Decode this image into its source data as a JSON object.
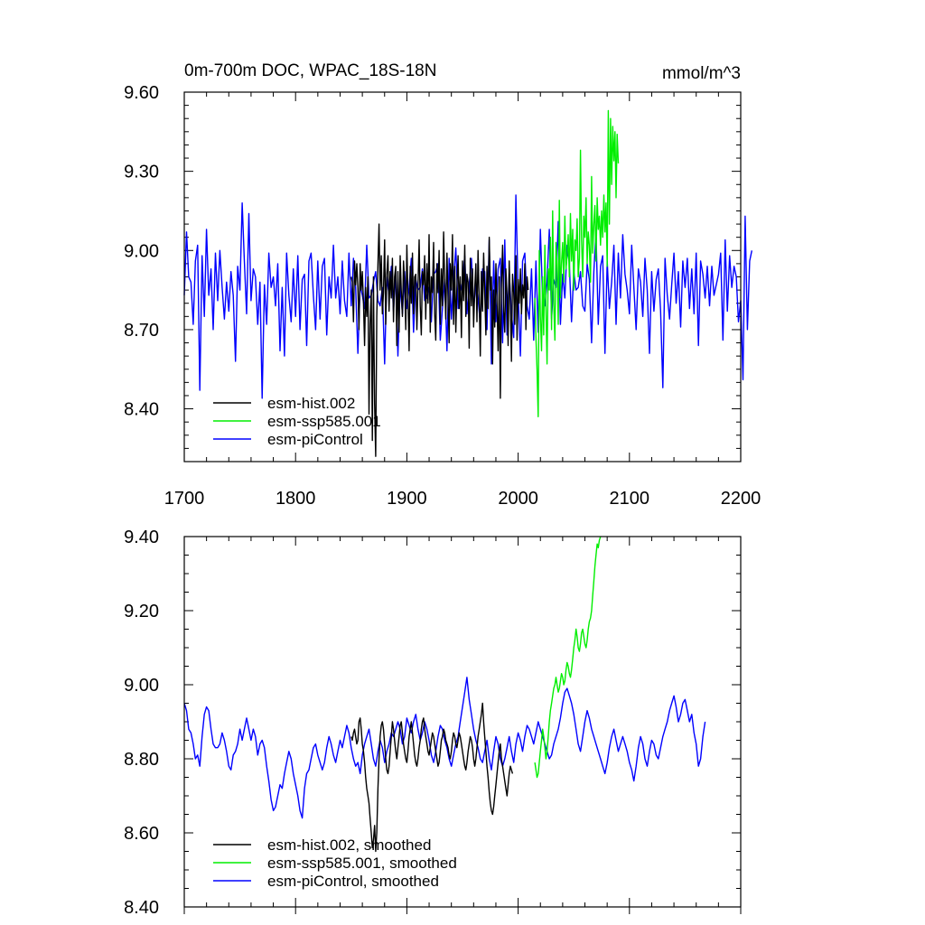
{
  "figure": {
    "title": "0m-700m DOC, WPAC_18S-18N",
    "units": "mmol/m^3"
  },
  "chart_data": [
    {
      "type": "line",
      "title": "0m-700m DOC, WPAC_18S-18N",
      "units_label": "mmol/m^3",
      "xlim": [
        1700,
        2200
      ],
      "ylim": [
        8.2,
        9.6
      ],
      "x_ticks": [
        "1700",
        "1800",
        "1900",
        "2000",
        "2100",
        "2200"
      ],
      "y_ticks": [
        "8.40",
        "8.70",
        "9.00",
        "9.30",
        "9.60"
      ],
      "legend_position": "bottom-left",
      "series": [
        {
          "name": "esm-piControl",
          "color": "#0000ff",
          "x_start": 1700,
          "x_step": 2,
          "values": [
            8.83,
            9.07,
            8.9,
            8.88,
            8.72,
            8.96,
            9.02,
            8.47,
            8.98,
            8.75,
            9.08,
            8.83,
            8.93,
            8.7,
            8.99,
            8.81,
            9.0,
            8.86,
            8.74,
            8.88,
            8.77,
            8.92,
            8.83,
            8.58,
            8.94,
            8.85,
            9.18,
            8.96,
            8.76,
            9.14,
            8.81,
            8.93,
            8.9,
            8.72,
            8.88,
            8.44,
            8.87,
            8.72,
            8.99,
            8.86,
            8.9,
            8.79,
            8.95,
            8.62,
            8.86,
            8.6,
            8.99,
            8.83,
            8.73,
            8.93,
            8.75,
            8.98,
            8.7,
            8.89,
            8.91,
            8.64,
            8.96,
            8.99,
            8.83,
            8.7,
            8.96,
            8.74,
            8.94,
            8.97,
            8.68,
            8.9,
            8.82,
            9.02,
            8.82,
            8.9,
            8.76,
            8.96,
            8.81,
            8.75,
            8.99,
            8.79,
            8.97,
            8.86,
            8.61,
            8.87,
            8.83,
            8.78,
            9.02,
            8.82,
            8.83,
            8.88,
            8.92,
            8.81,
            8.79,
            8.86,
            8.57,
            8.9,
            8.83,
            8.94,
            8.77,
            8.92,
            8.6,
            8.87,
            8.76,
            8.92,
            8.78,
            8.86,
            8.97,
            8.69,
            8.89,
            8.85,
            8.86,
            8.93,
            8.81,
            8.82,
            8.86,
            8.73,
            8.91,
            8.92,
            8.95,
            8.66,
            8.78,
            8.89,
            8.62,
            8.97,
            8.74,
            8.89,
            9.01,
            8.78,
            8.84,
            8.88,
            8.98,
            8.76,
            8.87,
            8.97,
            8.78,
            8.87,
            8.82,
            8.72,
            8.93,
            8.92,
            8.7,
            9.04,
            8.57,
            8.96,
            8.73,
            8.93,
            8.97,
            8.65,
            9.04,
            8.68,
            8.92,
            8.76,
            8.67,
            9.21,
            8.84,
            8.6,
            8.96,
            8.99,
            8.79,
            8.74,
            8.93,
            8.66,
            8.96,
            8.69,
            9.08,
            8.82,
            8.79,
            8.88,
            9.08,
            8.74,
            8.89,
            8.86,
            9.11,
            8.72,
            8.91,
            8.82,
            9.02,
            8.95,
            8.73,
            8.92,
            8.85,
            8.86,
            8.92,
            8.79,
            8.77,
            8.95,
            8.89,
            8.65,
            8.92,
            9.07,
            8.72,
            8.94,
            8.98,
            8.61,
            8.96,
            8.78,
            8.88,
            9.02,
            8.72,
            8.99,
            8.82,
            9.06,
            8.91,
            8.85,
            8.76,
            9.02,
            8.86,
            8.7,
            8.93,
            8.88,
            8.75,
            8.97,
            8.85,
            8.61,
            8.92,
            8.77,
            8.89,
            8.93,
            8.77,
            8.48,
            8.97,
            8.83,
            8.74,
            8.87,
            8.99,
            8.8,
            8.92,
            8.71,
            8.96,
            8.86,
            8.97,
            8.78,
            8.93,
            8.76,
            8.99,
            8.64,
            8.96,
            8.91,
            8.82,
            8.94,
            8.79,
            8.94,
            8.83,
            8.87,
            8.91,
            8.99,
            8.66,
            9.04,
            8.77,
            8.98,
            8.86,
            8.94,
            8.9,
            8.73,
            8.81,
            8.51,
            9.13,
            8.7,
            8.96,
            9.0
          ]
        },
        {
          "name": "esm-hist.002",
          "color": "#000000",
          "x_start": 1850,
          "x_step": 1,
          "values": [
            8.9,
            8.88,
            8.73,
            8.96,
            8.87,
            8.95,
            8.86,
            8.7,
            8.95,
            8.85,
            8.92,
            8.8,
            8.64,
            8.86,
            8.75,
            8.9,
            8.38,
            8.72,
            8.85,
            8.28,
            8.9,
            8.42,
            8.22,
            8.75,
            8.95,
            9.1,
            8.85,
            8.98,
            8.76,
            8.84,
            9.04,
            8.72,
            8.91,
            8.98,
            8.77,
            8.92,
            8.82,
            8.97,
            8.73,
            8.9,
            8.94,
            8.64,
            8.92,
            8.69,
            8.98,
            8.85,
            8.75,
            8.96,
            8.88,
            8.7,
            9.02,
            8.83,
            8.62,
            8.94,
            8.8,
            8.99,
            8.76,
            8.9,
            8.91,
            8.7,
            8.86,
            9.04,
            8.79,
            8.68,
            8.92,
            8.87,
            8.98,
            8.74,
            8.95,
            8.8,
            9.06,
            8.69,
            8.9,
            8.84,
            9.03,
            8.76,
            8.66,
            8.95,
            8.84,
            9.0,
            8.72,
            8.93,
            8.79,
            9.07,
            8.88,
            8.74,
            8.99,
            8.82,
            8.65,
            8.95,
            8.85,
            9.06,
            8.72,
            8.94,
            8.69,
            8.86,
            8.98,
            8.78,
            8.9,
            8.67,
            8.96,
            8.81,
            9.02,
            8.75,
            8.91,
            8.88,
            8.63,
            8.97,
            8.79,
            8.93,
            8.71,
            8.86,
            8.95,
            8.73,
            9.0,
            8.82,
            8.6,
            8.92,
            8.77,
            8.99,
            8.84,
            8.68,
            8.94,
            8.78,
            9.05,
            8.85,
            8.9,
            8.57,
            8.85,
            8.71,
            8.95,
            8.8,
            8.62,
            8.9,
            8.44,
            8.87,
            9.02,
            8.77,
            8.69,
            8.93,
            8.83,
            8.64,
            8.96,
            8.79,
            8.58,
            8.91,
            8.84,
            8.72,
            8.98,
            8.66,
            8.89,
            8.8,
            8.93,
            8.76,
            8.87,
            8.82,
            8.95,
            8.7,
            8.9,
            8.85
          ]
        },
        {
          "name": "esm-ssp585.001",
          "color": "#00ee00",
          "x_start": 2015,
          "x_step": 1,
          "values": [
            8.82,
            8.67,
            8.55,
            8.37,
            9.0,
            8.75,
            8.62,
            8.9,
            8.68,
            9.02,
            8.78,
            8.57,
            8.93,
            8.85,
            9.05,
            8.7,
            9.15,
            8.8,
            8.66,
            9.03,
            8.95,
            8.72,
            9.19,
            8.82,
            8.95,
            9.03,
            8.88,
            9.13,
            8.93,
            8.98,
            9.06,
            8.9,
            9.14,
            8.96,
            9.08,
            8.85,
            9.04,
            9.0,
            9.12,
            8.9,
            8.97,
            9.38,
            9.04,
            8.9,
            9.13,
            9.05,
            9.2,
            8.95,
            9.07,
            9.02,
            8.88,
            9.28,
            8.99,
            9.1,
            9.17,
            8.96,
            9.2,
            9.08,
            9.13,
            9.02,
            9.15,
            9.05,
            9.21,
            9.07,
            9.18,
            8.94,
            9.53,
            9.1,
            9.5,
            9.25,
            9.47,
            9.34,
            9.45,
            9.2,
            9.44,
            9.33
          ]
        }
      ]
    },
    {
      "type": "line",
      "xlim": [
        1700,
        2200
      ],
      "ylim": [
        8.4,
        9.4
      ],
      "y_ticks": [
        "8.40",
        "8.60",
        "8.80",
        "9.00",
        "9.20",
        "9.40"
      ],
      "legend_position": "bottom-left",
      "series": [
        {
          "name": "esm-piControl, smoothed",
          "color": "#0000ff",
          "x_start": 1700,
          "x_step": 2,
          "values": [
            8.95,
            8.93,
            8.88,
            8.87,
            8.84,
            8.8,
            8.81,
            8.78,
            8.86,
            8.92,
            8.94,
            8.93,
            8.88,
            8.84,
            8.83,
            8.83,
            8.84,
            8.87,
            8.85,
            8.82,
            8.78,
            8.77,
            8.81,
            8.82,
            8.84,
            8.88,
            8.85,
            8.88,
            8.91,
            8.88,
            8.85,
            8.88,
            8.86,
            8.81,
            8.84,
            8.85,
            8.83,
            8.78,
            8.74,
            8.69,
            8.66,
            8.67,
            8.7,
            8.73,
            8.72,
            8.76,
            8.79,
            8.82,
            8.8,
            8.76,
            8.73,
            8.7,
            8.66,
            8.64,
            8.72,
            8.76,
            8.77,
            8.8,
            8.83,
            8.84,
            8.81,
            8.79,
            8.77,
            8.79,
            8.83,
            8.86,
            8.84,
            8.81,
            8.79,
            8.82,
            8.85,
            8.83,
            8.86,
            8.89,
            8.87,
            8.83,
            8.8,
            8.78,
            8.79,
            8.76,
            8.81,
            8.84,
            8.86,
            8.88,
            8.84,
            8.8,
            8.78,
            8.82,
            8.85,
            8.83,
            8.79,
            8.82,
            8.84,
            8.87,
            8.86,
            8.88,
            8.9,
            8.88,
            8.84,
            8.86,
            8.91,
            8.89,
            8.87,
            8.9,
            8.92,
            8.88,
            8.85,
            8.87,
            8.9,
            8.88,
            8.85,
            8.81,
            8.79,
            8.82,
            8.86,
            8.89,
            8.88,
            8.85,
            8.83,
            8.8,
            8.78,
            8.81,
            8.84,
            8.86,
            8.9,
            8.94,
            8.98,
            9.02,
            8.96,
            8.92,
            8.88,
            8.85,
            8.83,
            8.8,
            8.79,
            8.82,
            8.85,
            8.8,
            8.77,
            8.82,
            8.86,
            8.84,
            8.8,
            8.78,
            8.8,
            8.83,
            8.86,
            8.82,
            8.79,
            8.84,
            8.87,
            8.85,
            8.82,
            8.86,
            8.89,
            8.88,
            8.86,
            8.84,
            8.87,
            8.9,
            8.88,
            8.86,
            8.84,
            8.82,
            8.8,
            8.81,
            8.84,
            8.86,
            8.88,
            8.91,
            8.95,
            8.98,
            8.99,
            8.97,
            8.95,
            8.92,
            8.88,
            8.84,
            8.82,
            8.86,
            8.9,
            8.93,
            8.91,
            8.88,
            8.86,
            8.84,
            8.82,
            8.8,
            8.78,
            8.76,
            8.79,
            8.83,
            8.86,
            8.88,
            8.85,
            8.82,
            8.84,
            8.86,
            8.84,
            8.82,
            8.79,
            8.77,
            8.74,
            8.78,
            8.83,
            8.86,
            8.84,
            8.8,
            8.78,
            8.82,
            8.85,
            8.84,
            8.81,
            8.8,
            8.83,
            8.86,
            8.88,
            8.9,
            8.93,
            8.95,
            8.97,
            8.94,
            8.9,
            8.92,
            8.95,
            8.96,
            8.93,
            8.9,
            8.92,
            8.87,
            8.84,
            8.78,
            8.8,
            8.86,
            8.9
          ]
        },
        {
          "name": "esm-hist.002, smoothed",
          "color": "#000000",
          "x_start": 1850,
          "x_step": 1,
          "values": [
            8.86,
            8.85,
            8.87,
            8.88,
            8.86,
            8.84,
            8.85,
            8.9,
            8.91,
            8.88,
            8.84,
            8.82,
            8.79,
            8.75,
            8.72,
            8.7,
            8.68,
            8.64,
            8.6,
            8.56,
            8.58,
            8.62,
            8.55,
            8.6,
            8.72,
            8.8,
            8.86,
            8.89,
            8.9,
            8.88,
            8.84,
            8.8,
            8.77,
            8.76,
            8.78,
            8.82,
            8.86,
            8.9,
            8.88,
            8.85,
            8.82,
            8.8,
            8.83,
            8.86,
            8.89,
            8.9,
            8.87,
            8.84,
            8.82,
            8.8,
            8.79,
            8.82,
            8.86,
            8.88,
            8.9,
            8.87,
            8.84,
            8.81,
            8.79,
            8.78,
            8.8,
            8.83,
            8.85,
            8.88,
            8.9,
            8.91,
            8.88,
            8.86,
            8.84,
            8.82,
            8.81,
            8.83,
            8.85,
            8.87,
            8.86,
            8.84,
            8.82,
            8.8,
            8.78,
            8.79,
            8.82,
            8.85,
            8.86,
            8.88,
            8.87,
            8.85,
            8.84,
            8.83,
            8.81,
            8.8,
            8.82,
            8.85,
            8.87,
            8.86,
            8.84,
            8.83,
            8.85,
            8.87,
            8.86,
            8.84,
            8.82,
            8.8,
            8.78,
            8.77,
            8.79,
            8.82,
            8.84,
            8.86,
            8.85,
            8.83,
            8.8,
            8.78,
            8.8,
            8.83,
            8.86,
            8.88,
            8.9,
            8.92,
            8.95,
            8.9,
            8.86,
            8.82,
            8.78,
            8.75,
            8.71,
            8.68,
            8.66,
            8.65,
            8.67,
            8.7,
            8.73,
            8.76,
            8.79,
            8.82,
            8.84,
            8.8,
            8.78,
            8.76,
            8.74,
            8.72,
            8.7,
            8.73,
            8.76,
            8.78,
            8.77,
            8.76
          ]
        },
        {
          "name": "esm-ssp585.001, smoothed",
          "color": "#00ee00",
          "x_start": 2015,
          "x_step": 1,
          "values": [
            8.79,
            8.77,
            8.75,
            8.76,
            8.79,
            8.82,
            8.85,
            8.88,
            8.86,
            8.83,
            8.8,
            8.82,
            8.86,
            8.9,
            8.93,
            8.95,
            8.97,
            8.99,
            9.0,
            9.02,
            9.0,
            8.98,
            8.99,
            9.01,
            9.03,
            9.02,
            9.0,
            9.01,
            9.04,
            9.06,
            9.05,
            9.03,
            9.02,
            9.04,
            9.07,
            9.1,
            9.12,
            9.15,
            9.13,
            9.1,
            9.09,
            9.11,
            9.14,
            9.15,
            9.13,
            9.11,
            9.1,
            9.12,
            9.15,
            9.17,
            9.18,
            9.2,
            9.24,
            9.28,
            9.32,
            9.35,
            9.38,
            9.37,
            9.39,
            9.4
          ]
        }
      ]
    }
  ]
}
